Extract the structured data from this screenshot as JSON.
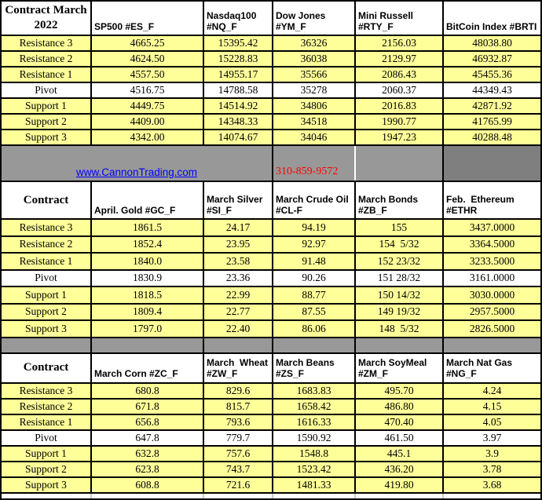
{
  "colors": {
    "highlight_yellow": "#FFFF99",
    "banner_gray": "#989898",
    "banner_dark_gray": "#7F7F7F",
    "link_blue": "#0000FF",
    "phone_red": "#FF0000",
    "border_black": "#000000"
  },
  "banner": {
    "link_text": "www.CannonTrading.com",
    "phone": "310-859-9572"
  },
  "sections": [
    {
      "id": "indices",
      "headers": [
        "Contract March\n2022",
        "SP500 #ES_F",
        "Nasdaq100\n#NQ_F",
        "Dow Jones\n#YM_F",
        "Mini Russell\n#RTY_F",
        "BitCoin Index #BRTI"
      ],
      "rows": [
        {
          "label": "Resistance 3",
          "values": [
            "4665.25",
            "15395.42",
            "36326",
            "2156.03",
            "48038.80"
          ],
          "highlight": true
        },
        {
          "label": "Resistance 2",
          "values": [
            "4624.50",
            "15228.83",
            "36038",
            "2129.97",
            "46932.87"
          ],
          "highlight": true
        },
        {
          "label": "Resistance 1",
          "values": [
            "4557.50",
            "14955.17",
            "35566",
            "2086.43",
            "45455.36"
          ],
          "highlight": true
        },
        {
          "label": "Pivot",
          "values": [
            "4516.75",
            "14788.58",
            "35278",
            "2060.37",
            "44349.43"
          ],
          "highlight": false
        },
        {
          "label": "Support 1",
          "values": [
            "4449.75",
            "14514.92",
            "34806",
            "2016.83",
            "42871.92"
          ],
          "highlight": true
        },
        {
          "label": "Support 2",
          "values": [
            "4409.00",
            "14348.33",
            "34518",
            "1990.77",
            "41765.99"
          ],
          "highlight": true
        },
        {
          "label": "Support 3",
          "values": [
            "4342.00",
            "14074.67",
            "34046",
            "1947.23",
            "40288.48"
          ],
          "highlight": true
        }
      ]
    },
    {
      "id": "metals-energy-crypto",
      "headers": [
        "Contract",
        "April. Gold #GC_F",
        "March Silver\n#SI_F",
        "March Crude Oil\n#CL-F",
        "March Bonds\n#ZB_F",
        "Feb.  Ethereum\n#ETHR"
      ],
      "rows": [
        {
          "label": "Resistance 3",
          "values": [
            "1861.5",
            "24.17",
            "94.19",
            "155",
            "3437.0000"
          ],
          "highlight": true
        },
        {
          "label": "Resistance 2",
          "values": [
            "1852.4",
            "23.95",
            "92.97",
            "154  5/32",
            "3364.5000"
          ],
          "highlight": true
        },
        {
          "label": "Resistance 1",
          "values": [
            "1840.0",
            "23.58",
            "91.48",
            "152 23/32",
            "3233.5000"
          ],
          "highlight": true
        },
        {
          "label": "Pivot",
          "values": [
            "1830.9",
            "23.36",
            "90.26",
            "151 28/32",
            "3161.0000"
          ],
          "highlight": false
        },
        {
          "label": "Support 1",
          "values": [
            "1818.5",
            "22.99",
            "88.77",
            "150 14/32",
            "3030.0000"
          ],
          "highlight": true
        },
        {
          "label": "Support 2",
          "values": [
            "1809.4",
            "22.77",
            "87.55",
            "149 19/32",
            "2957.5000"
          ],
          "highlight": true
        },
        {
          "label": "Support 3",
          "values": [
            "1797.0",
            "22.40",
            "86.06",
            "148  5/32",
            "2826.5000"
          ],
          "highlight": true
        }
      ]
    },
    {
      "id": "grains-natgas",
      "headers": [
        "Contract",
        "March Corn #ZC_F",
        "March  Wheat\n#ZW_F",
        "March Beans\n#ZS_F",
        "March SoyMeal\n#ZM_F",
        "March Nat Gas\n#NG_F"
      ],
      "rows": [
        {
          "label": "Resistance 3",
          "values": [
            "680.8",
            "829.6",
            "1683.83",
            "495.70",
            "4.24"
          ],
          "highlight": true
        },
        {
          "label": "Resistance 2",
          "values": [
            "671.8",
            "815.7",
            "1658.42",
            "486.80",
            "4.15"
          ],
          "highlight": true
        },
        {
          "label": "Resistance 1",
          "values": [
            "656.8",
            "793.6",
            "1616.33",
            "470.40",
            "4.05"
          ],
          "highlight": true
        },
        {
          "label": "Pivot",
          "values": [
            "647.8",
            "779.7",
            "1590.92",
            "461.50",
            "3.97"
          ],
          "highlight": false
        },
        {
          "label": "Support 1",
          "values": [
            "632.8",
            "757.6",
            "1548.8",
            "445.1",
            "3.9"
          ],
          "highlight": true
        },
        {
          "label": "Support 2",
          "values": [
            "623.8",
            "743.7",
            "1523.42",
            "436.20",
            "3.78"
          ],
          "highlight": true
        },
        {
          "label": "Support 3",
          "values": [
            "608.8",
            "721.6",
            "1481.33",
            "419.80",
            "3.68"
          ],
          "highlight": true
        }
      ]
    }
  ]
}
